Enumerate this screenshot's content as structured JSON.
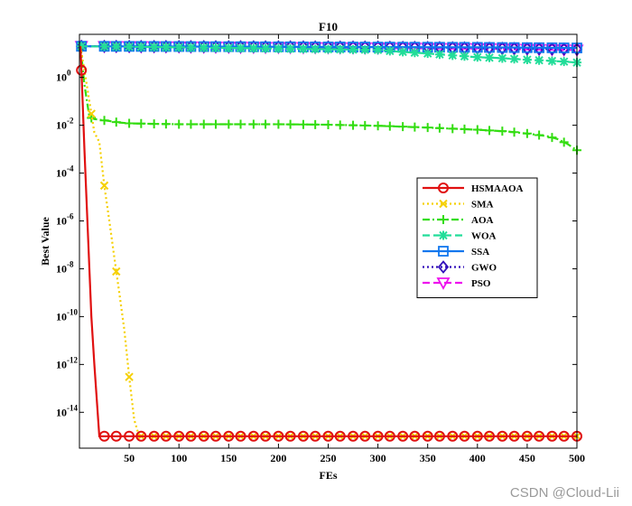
{
  "chart_data": {
    "type": "line",
    "title": "F10",
    "xlabel": "FEs",
    "ylabel": "Best Value",
    "xlim": [
      0,
      500
    ],
    "ylim_log10": [
      -15.5,
      1.8
    ],
    "y_scale": "log",
    "grid": false,
    "legend_position": "right-center",
    "x_ticks": [
      50,
      100,
      150,
      200,
      250,
      300,
      350,
      400,
      450,
      500
    ],
    "x_tick_labels": [
      "50",
      "100",
      "150",
      "200",
      "250",
      "300",
      "350",
      "400",
      "450",
      "500"
    ],
    "y_ticks_exp": [
      0,
      -2,
      -4,
      -6,
      -8,
      -10,
      -12,
      -14
    ],
    "y_tick_base": "10",
    "series": [
      {
        "name": "HSMAAOA",
        "color": "#e01010",
        "dash": "solid",
        "marker": "circle",
        "x": [
          1,
          2,
          5,
          8,
          10,
          12,
          15,
          20,
          22,
          25,
          30,
          40,
          50,
          60,
          70,
          80,
          90,
          100,
          110,
          120,
          130,
          140,
          150,
          160,
          170,
          180,
          190,
          200,
          210,
          220,
          230,
          240,
          250,
          260,
          270,
          280,
          290,
          300,
          310,
          320,
          330,
          340,
          350,
          360,
          370,
          380,
          390,
          400,
          410,
          420,
          430,
          440,
          450,
          460,
          470,
          480,
          490,
          500
        ],
        "y": [
          20,
          2,
          0.001,
          1e-06,
          1e-08,
          1e-10,
          1e-12,
          1e-15,
          1e-15,
          1e-15,
          1e-15,
          1e-15,
          1e-15,
          1e-15,
          1e-15,
          1e-15,
          1e-15,
          1e-15,
          1e-15,
          1e-15,
          1e-15,
          1e-15,
          1e-15,
          1e-15,
          1e-15,
          1e-15,
          1e-15,
          1e-15,
          1e-15,
          1e-15,
          1e-15,
          1e-15,
          1e-15,
          1e-15,
          1e-15,
          1e-15,
          1e-15,
          1e-15,
          1e-15,
          1e-15,
          1e-15,
          1e-15,
          1e-15,
          1e-15,
          1e-15,
          1e-15,
          1e-15,
          1e-15,
          1e-15,
          1e-15,
          1e-15,
          1e-15,
          1e-15,
          1e-15,
          1e-15,
          1e-15,
          1e-15,
          1e-15
        ],
        "marker_x": [
          2,
          25,
          37,
          50,
          62,
          75,
          87,
          100,
          112,
          125,
          137,
          150,
          162,
          175,
          187,
          200,
          212,
          225,
          237,
          250,
          262,
          275,
          287,
          300,
          312,
          325,
          337,
          350,
          362,
          375,
          387,
          400,
          412,
          425,
          437,
          450,
          462,
          475,
          487,
          500
        ]
      },
      {
        "name": "SMA",
        "color": "#f5d000",
        "dash": "dotted",
        "marker": "x",
        "x": [
          1,
          5,
          10,
          15,
          20,
          25,
          30,
          35,
          40,
          45,
          50,
          55,
          60,
          62,
          70,
          80,
          90,
          100,
          150,
          200,
          250,
          300,
          350,
          400,
          450,
          500
        ],
        "y": [
          20,
          2,
          0.1,
          0.005,
          0.002,
          3e-05,
          1e-06,
          3e-08,
          1e-09,
          3e-11,
          3e-13,
          5e-15,
          1e-15,
          1e-15,
          1e-15,
          1e-15,
          1e-15,
          1e-15,
          1e-15,
          1e-15,
          1e-15,
          1e-15,
          1e-15,
          1e-15,
          1e-15,
          1e-15
        ],
        "marker_x": [
          12,
          25,
          37,
          50,
          62,
          75,
          87,
          100,
          112,
          125,
          137,
          150,
          162,
          175,
          187,
          200,
          212,
          225,
          237,
          250,
          262,
          275,
          287,
          300,
          312,
          325,
          337,
          350,
          362,
          375,
          387,
          400,
          412,
          425,
          437,
          450,
          462,
          475,
          487,
          500
        ]
      },
      {
        "name": "AOA",
        "color": "#33dd11",
        "dash": "dashdot",
        "marker": "plus",
        "x": [
          1,
          5,
          10,
          15,
          20,
          30,
          40,
          50,
          70,
          100,
          150,
          200,
          250,
          300,
          350,
          400,
          430,
          450,
          470,
          480,
          490,
          500
        ],
        "y": [
          20,
          0.5,
          0.022,
          0.018,
          0.017,
          0.015,
          0.013,
          0.012,
          0.0115,
          0.011,
          0.011,
          0.011,
          0.0105,
          0.0095,
          0.008,
          0.0065,
          0.0055,
          0.0045,
          0.0035,
          0.0027,
          0.0017,
          0.0009
        ],
        "marker_x": [
          12,
          25,
          37,
          50,
          62,
          75,
          87,
          100,
          112,
          125,
          137,
          150,
          162,
          175,
          187,
          200,
          212,
          225,
          237,
          250,
          262,
          275,
          287,
          300,
          312,
          325,
          337,
          350,
          362,
          375,
          387,
          400,
          412,
          425,
          437,
          450,
          462,
          475,
          487,
          500
        ]
      },
      {
        "name": "WOA",
        "color": "#22dd99",
        "dash": "dashed",
        "marker": "asterisk",
        "x": [
          1,
          50,
          100,
          150,
          200,
          250,
          300,
          320,
          350,
          380,
          400,
          420,
          450,
          470,
          490,
          500
        ],
        "y": [
          20,
          19,
          18,
          17,
          16,
          15,
          14,
          12,
          10,
          8,
          7,
          6.5,
          5.5,
          5,
          4.5,
          4.2
        ],
        "marker_x": [
          2,
          25,
          37,
          50,
          62,
          75,
          87,
          100,
          112,
          125,
          137,
          150,
          162,
          175,
          187,
          200,
          212,
          225,
          237,
          250,
          262,
          275,
          287,
          300,
          312,
          325,
          337,
          350,
          362,
          375,
          387,
          400,
          412,
          425,
          437,
          450,
          462,
          475,
          487,
          500
        ]
      },
      {
        "name": "SSA",
        "color": "#1177ee",
        "dash": "solid",
        "marker": "square",
        "x": [
          1,
          100,
          200,
          300,
          400,
          500
        ],
        "y": [
          20,
          19.5,
          19,
          18.5,
          18,
          17
        ],
        "marker_x": [
          2,
          25,
          37,
          50,
          62,
          75,
          87,
          100,
          112,
          125,
          137,
          150,
          162,
          175,
          187,
          200,
          212,
          225,
          237,
          250,
          262,
          275,
          287,
          300,
          312,
          325,
          337,
          350,
          362,
          375,
          387,
          400,
          412,
          425,
          437,
          450,
          462,
          475,
          487,
          500
        ]
      },
      {
        "name": "GWO",
        "color": "#3311bb",
        "dash": "dotted",
        "marker": "diamond",
        "x": [
          1,
          100,
          200,
          300,
          400,
          500
        ],
        "y": [
          20,
          19.5,
          19,
          18.5,
          17,
          15
        ],
        "marker_x": [
          2,
          25,
          37,
          50,
          62,
          75,
          87,
          100,
          112,
          125,
          137,
          150,
          162,
          175,
          187,
          200,
          212,
          225,
          237,
          250,
          262,
          275,
          287,
          300,
          312,
          325,
          337,
          350,
          362,
          375,
          387,
          400,
          412,
          425,
          437,
          450,
          462,
          475,
          487,
          500
        ]
      },
      {
        "name": "PSO",
        "color": "#ee11ee",
        "dash": "dashed",
        "marker": "triangle-down",
        "x": [
          1,
          100,
          200,
          300,
          400,
          500
        ],
        "y": [
          20,
          19,
          18,
          17,
          16,
          14
        ],
        "marker_x": [
          2,
          25,
          37,
          50,
          62,
          75,
          87,
          100,
          112,
          125,
          137,
          150,
          162,
          175,
          187,
          200,
          212,
          225,
          237,
          250,
          262,
          275,
          287,
          300,
          312,
          325,
          337,
          350,
          362,
          375,
          387,
          400,
          412,
          425,
          437,
          450,
          462,
          475,
          487,
          500
        ]
      }
    ]
  },
  "watermark": "CSDN @Cloud-Lii"
}
